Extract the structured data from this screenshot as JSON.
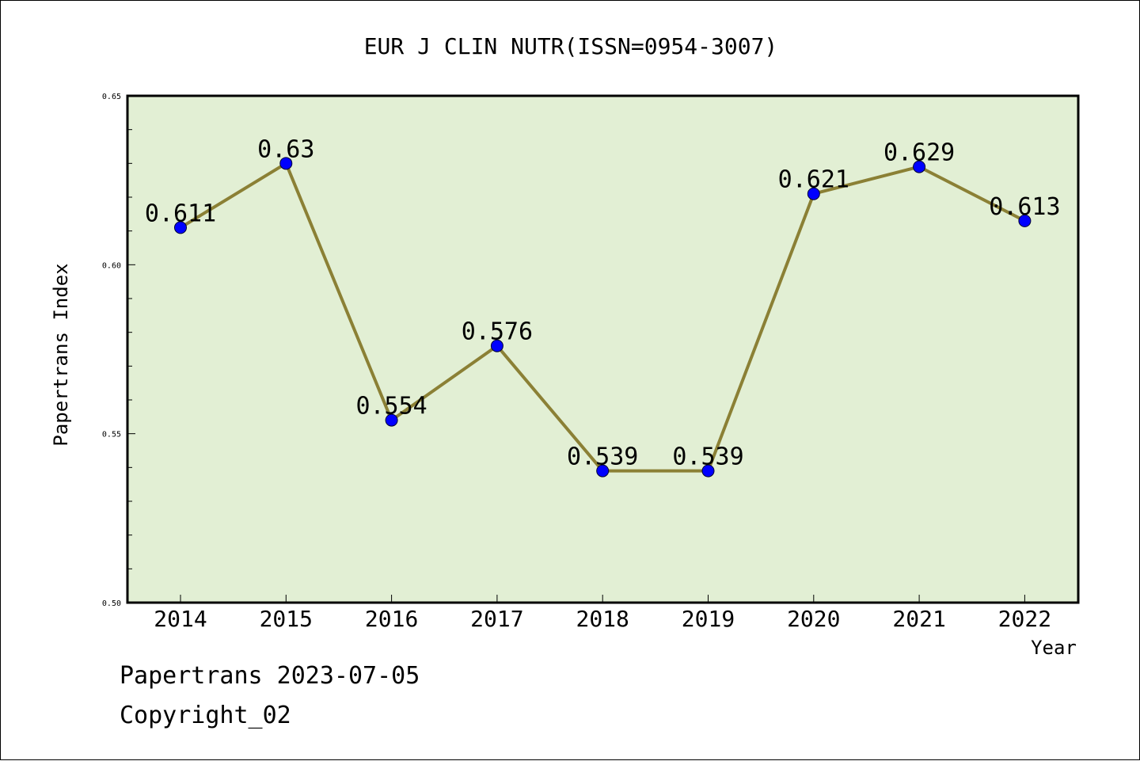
{
  "chart_data": {
    "type": "line",
    "title": "EUR J CLIN NUTR(ISSN=0954-3007)",
    "xlabel": "Year",
    "ylabel": "Papertrans Index",
    "categories": [
      "2014",
      "2015",
      "2016",
      "2017",
      "2018",
      "2019",
      "2020",
      "2021",
      "2022"
    ],
    "series": [
      {
        "values": [
          0.611,
          0.63,
          0.554,
          0.576,
          0.539,
          0.539,
          0.621,
          0.629,
          0.613
        ],
        "data_labels": [
          "0.611",
          "0.63",
          "0.554",
          "0.576",
          "0.539",
          "0.539",
          "0.621",
          "0.629",
          "0.613"
        ]
      }
    ],
    "ylim": [
      0.5,
      0.65
    ],
    "yticks": [
      "0.50",
      "0.55",
      "0.60",
      "0.65"
    ],
    "grid": false,
    "colors": {
      "plot_background": "#e2efd4",
      "line": "#8b8035",
      "marker": "#0000ff"
    }
  },
  "footer": {
    "date_text": "Papertrans 2023-07-05",
    "copyright_text": "Copyright_02"
  }
}
